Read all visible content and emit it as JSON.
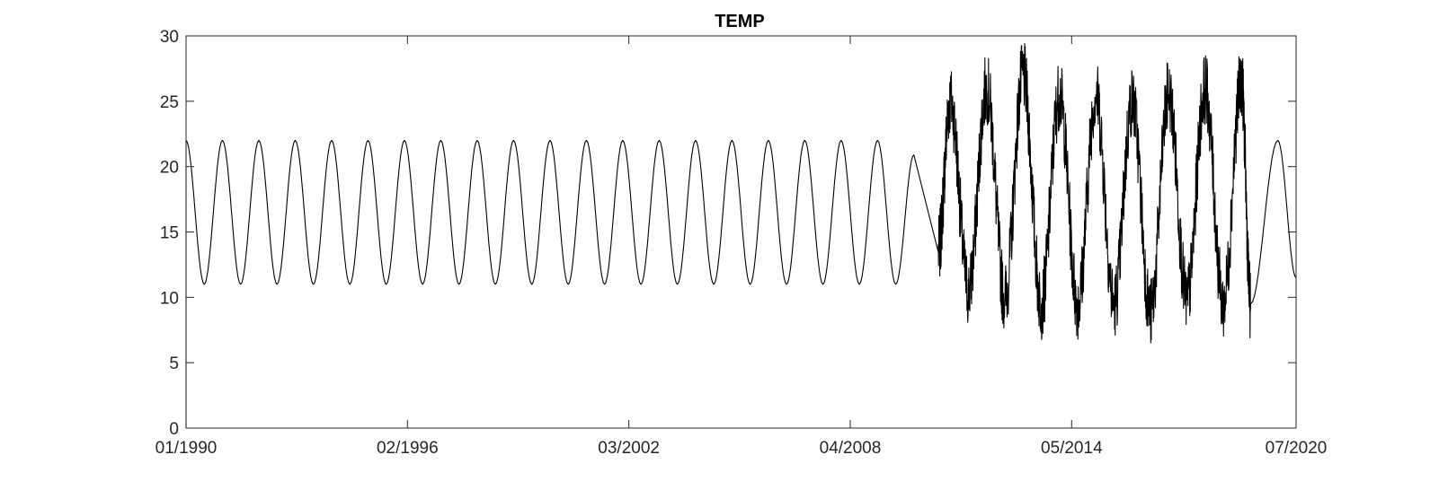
{
  "chart_data": {
    "type": "line",
    "title": "TEMP",
    "xlabel": "",
    "ylabel": "",
    "x_range": [
      "1990-01",
      "2020-07"
    ],
    "ylim": [
      0,
      30
    ],
    "x_ticks": [
      "01/1990",
      "02/1996",
      "03/2002",
      "04/2008",
      "05/2014",
      "07/2020"
    ],
    "y_ticks": [
      "0",
      "5",
      "10",
      "15",
      "20",
      "25",
      "30"
    ],
    "grid": false,
    "legend": "none",
    "line_color": "#000000",
    "series": [
      {
        "segments": [
          {
            "style": "smooth-seasonal",
            "x": [
              "1990-01",
              "1990-07",
              "1991-01",
              "1991-07",
              "1992-01",
              "1992-07",
              "1993-01",
              "1993-07",
              "1994-01",
              "1994-07",
              "1995-01",
              "1995-07",
              "1996-01",
              "1996-07",
              "1997-01",
              "1997-07",
              "1998-01",
              "1998-07",
              "1999-01",
              "1999-07",
              "2000-01",
              "2000-07",
              "2001-01",
              "2001-07",
              "2002-01",
              "2002-07",
              "2003-01",
              "2003-07",
              "2004-01",
              "2004-07",
              "2005-01",
              "2005-07",
              "2006-01",
              "2006-07",
              "2007-01",
              "2007-07",
              "2008-01",
              "2008-07",
              "2009-01",
              "2009-07",
              "2010-01"
            ],
            "y": [
              22,
              11,
              22,
              11,
              22,
              11,
              22,
              11,
              22,
              11,
              22,
              11,
              22,
              11,
              22,
              11,
              22,
              11,
              22,
              11,
              22,
              11,
              22,
              11,
              22,
              11,
              22,
              11,
              22,
              11,
              22,
              11,
              22,
              11,
              22,
              11,
              22,
              11,
              22,
              11,
              20.9
            ]
          },
          {
            "style": "straight",
            "x": [
              "2010-01",
              "2010-09"
            ],
            "y": [
              20.9,
              13.5
            ]
          },
          {
            "style": "noisy-seasonal",
            "x": [
              "2010-09",
              "2011-01",
              "2011-07",
              "2012-01",
              "2012-07",
              "2013-01",
              "2013-07",
              "2014-01",
              "2014-07",
              "2015-01",
              "2015-07",
              "2016-01",
              "2016-07",
              "2017-01",
              "2017-07",
              "2018-01",
              "2018-07",
              "2019-01",
              "2019-04"
            ],
            "y": [
              13.5,
              25,
              10.5,
              26,
              10,
              27,
              9.5,
              25.5,
              9.5,
              25.5,
              9.5,
              25,
              8.8,
              25.5,
              9.8,
              26,
              9.5,
              26.5,
              9.5
            ]
          },
          {
            "style": "smooth-seasonal",
            "x": [
              "2019-04",
              "2020-01",
              "2020-07"
            ],
            "y": [
              9.5,
              22,
              11.5
            ]
          }
        ]
      }
    ]
  }
}
